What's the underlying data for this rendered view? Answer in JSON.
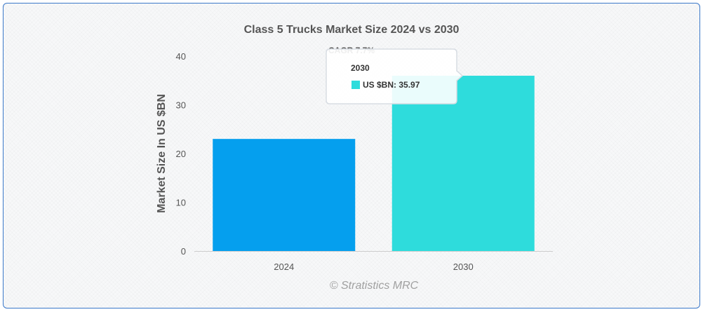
{
  "chart_data": {
    "type": "bar",
    "title": "Class 5 Trucks Market Size 2024 vs 2030",
    "subtitle": "CAGR 7.7%",
    "categories": [
      "2024",
      "2030"
    ],
    "values": [
      23.0,
      35.97
    ],
    "colors": [
      "#059fee",
      "#2edcdc"
    ],
    "ylabel": "Market Size In US $BN",
    "xlabel": "",
    "ylim": [
      0,
      40
    ],
    "yticks": [
      0,
      10,
      20,
      30,
      40
    ],
    "grid": false,
    "credit": "© Stratistics MRC"
  },
  "tooltip": {
    "title": "2030",
    "series_label": "US $BN: 35.97",
    "color": "#2edcdc"
  }
}
